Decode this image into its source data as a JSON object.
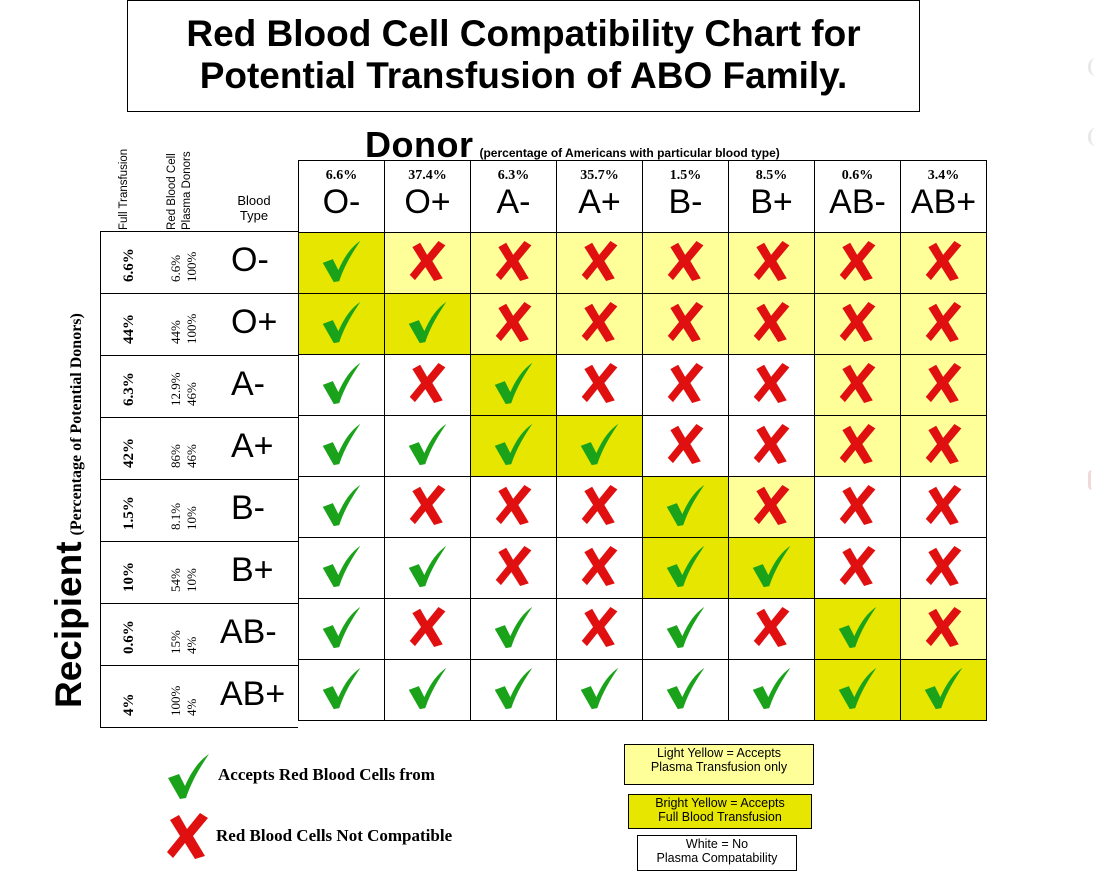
{
  "title": {
    "line1": "Red Blood Cell Compatibility Chart for",
    "line2": "Potential Transfusion of ABO Family."
  },
  "donor_axis": {
    "label": "Donor",
    "sublabel": "(percentage of Americans with particular blood type)"
  },
  "recipient_axis": {
    "label": "Recipient",
    "sublabel": "(Percentage of Potential Donors)"
  },
  "column_headers": {
    "full": "Full Transfusion",
    "rbc": "Red Blood Cell",
    "plasma": "Plasma Donors",
    "blood_type_1": "Blood",
    "blood_type_2": "Type"
  },
  "legend": {
    "accepts": "Accepts Red Blood Cells from",
    "not_compatible": "Red Blood Cells Not Compatible",
    "light_1": "Light Yellow = Accepts",
    "light_2": "Plasma Transfusion only",
    "bright_1": "Bright Yellow = Accepts",
    "bright_2": "Full Blood Transfusion",
    "white_1": "White = No",
    "white_2": "Plasma Compatability"
  },
  "colors": {
    "check": "#1aa31a",
    "cross": "#e01010",
    "bright_yellow": "#e6e600",
    "light_yellow": "#ffff99",
    "white": "#ffffff"
  },
  "chart_data": {
    "type": "table",
    "donors": [
      {
        "type": "O-",
        "percent": "6.6%"
      },
      {
        "type": "O+",
        "percent": "37.4%"
      },
      {
        "type": "A-",
        "percent": "6.3%"
      },
      {
        "type": "A+",
        "percent": "35.7%"
      },
      {
        "type": "B-",
        "percent": "1.5%"
      },
      {
        "type": "B+",
        "percent": "8.5%"
      },
      {
        "type": "AB-",
        "percent": "0.6%"
      },
      {
        "type": "AB+",
        "percent": "3.4%"
      }
    ],
    "recipients": [
      {
        "type": "O-",
        "full": "6.6%",
        "rbc": "6.6%",
        "plasma": "100%",
        "compat": [
          1,
          0,
          0,
          0,
          0,
          0,
          0,
          0
        ],
        "bg": [
          "B",
          "L",
          "L",
          "L",
          "L",
          "L",
          "L",
          "L"
        ]
      },
      {
        "type": "O+",
        "full": "44%",
        "rbc": "44%",
        "plasma": "100%",
        "compat": [
          1,
          1,
          0,
          0,
          0,
          0,
          0,
          0
        ],
        "bg": [
          "B",
          "B",
          "L",
          "L",
          "L",
          "L",
          "L",
          "L"
        ]
      },
      {
        "type": "A-",
        "full": "6.3%",
        "rbc": "12.9%",
        "plasma": "46%",
        "compat": [
          1,
          0,
          1,
          0,
          0,
          0,
          0,
          0
        ],
        "bg": [
          "W",
          "W",
          "B",
          "W",
          "W",
          "W",
          "L",
          "L"
        ]
      },
      {
        "type": "A+",
        "full": "42%",
        "rbc": "86%",
        "plasma": "46%",
        "compat": [
          1,
          1,
          1,
          1,
          0,
          0,
          0,
          0
        ],
        "bg": [
          "W",
          "W",
          "B",
          "B",
          "W",
          "W",
          "L",
          "L"
        ]
      },
      {
        "type": "B-",
        "full": "1.5%",
        "rbc": "8.1%",
        "plasma": "10%",
        "compat": [
          1,
          0,
          0,
          0,
          1,
          0,
          0,
          0
        ],
        "bg": [
          "W",
          "W",
          "W",
          "W",
          "B",
          "L",
          "W",
          "W"
        ]
      },
      {
        "type": "B+",
        "full": "10%",
        "rbc": "54%",
        "plasma": "10%",
        "compat": [
          1,
          1,
          0,
          0,
          1,
          1,
          0,
          0
        ],
        "bg": [
          "W",
          "W",
          "W",
          "W",
          "B",
          "B",
          "W",
          "W"
        ]
      },
      {
        "type": "AB-",
        "full": "0.6%",
        "rbc": "15%",
        "plasma": "4%",
        "compat": [
          1,
          0,
          1,
          0,
          1,
          0,
          1,
          0
        ],
        "bg": [
          "W",
          "W",
          "W",
          "W",
          "W",
          "W",
          "B",
          "L"
        ]
      },
      {
        "type": "AB+",
        "full": "4%",
        "rbc": "100%",
        "plasma": "4%",
        "compat": [
          1,
          1,
          1,
          1,
          1,
          1,
          1,
          1
        ],
        "bg": [
          "W",
          "W",
          "W",
          "W",
          "W",
          "W",
          "B",
          "B"
        ]
      }
    ]
  }
}
